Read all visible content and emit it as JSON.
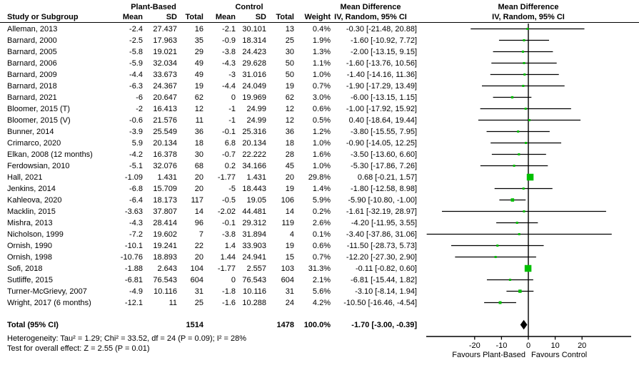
{
  "header": {
    "study_col": "Study or Subgroup",
    "group1": "Plant-Based",
    "group2": "Control",
    "mean": "Mean",
    "sd": "SD",
    "total": "Total",
    "weight": "Weight",
    "md_title": "Mean Difference",
    "md_subtitle": "IV, Random, 95% CI"
  },
  "studies": [
    {
      "name": "Alleman, 2013",
      "pb_mean": "-2.4",
      "pb_sd": "27.437",
      "pb_total": "16",
      "c_mean": "-2.1",
      "c_sd": "30.101",
      "c_total": "13",
      "weight": "0.4%",
      "md_text": "-0.30 [-21.48, 20.88]",
      "md": -0.3,
      "ci_lo": -21.48,
      "ci_hi": 20.88,
      "weight_pct": 0.4
    },
    {
      "name": "Barnard, 2000",
      "pb_mean": "-2.5",
      "pb_sd": "17.963",
      "pb_total": "35",
      "c_mean": "-0.9",
      "c_sd": "18.314",
      "c_total": "25",
      "weight": "1.9%",
      "md_text": "-1.60 [-10.92, 7.72]",
      "md": -1.6,
      "ci_lo": -10.92,
      "ci_hi": 7.72,
      "weight_pct": 1.9
    },
    {
      "name": "Barnard, 2005",
      "pb_mean": "-5.8",
      "pb_sd": "19.021",
      "pb_total": "29",
      "c_mean": "-3.8",
      "c_sd": "24.423",
      "c_total": "30",
      "weight": "1.3%",
      "md_text": "-2.00 [-13.15, 9.15]",
      "md": -2.0,
      "ci_lo": -13.15,
      "ci_hi": 9.15,
      "weight_pct": 1.3
    },
    {
      "name": "Barnard, 2006",
      "pb_mean": "-5.9",
      "pb_sd": "32.034",
      "pb_total": "49",
      "c_mean": "-4.3",
      "c_sd": "29.628",
      "c_total": "50",
      "weight": "1.1%",
      "md_text": "-1.60 [-13.76, 10.56]",
      "md": -1.6,
      "ci_lo": -13.76,
      "ci_hi": 10.56,
      "weight_pct": 1.1
    },
    {
      "name": "Barnard, 2009",
      "pb_mean": "-4.4",
      "pb_sd": "33.673",
      "pb_total": "49",
      "c_mean": "-3",
      "c_sd": "31.016",
      "c_total": "50",
      "weight": "1.0%",
      "md_text": "-1.40 [-14.16, 11.36]",
      "md": -1.4,
      "ci_lo": -14.16,
      "ci_hi": 11.36,
      "weight_pct": 1.0
    },
    {
      "name": "Barnard, 2018",
      "pb_mean": "-6.3",
      "pb_sd": "24.367",
      "pb_total": "19",
      "c_mean": "-4.4",
      "c_sd": "24.049",
      "c_total": "19",
      "weight": "0.7%",
      "md_text": "-1.90 [-17.29, 13.49]",
      "md": -1.9,
      "ci_lo": -17.29,
      "ci_hi": 13.49,
      "weight_pct": 0.7
    },
    {
      "name": "Barnard, 2021",
      "pb_mean": "-6",
      "pb_sd": "20.647",
      "pb_total": "62",
      "c_mean": "0",
      "c_sd": "19.969",
      "c_total": "62",
      "weight": "3.0%",
      "md_text": "-6.00 [-13.15, 1.15]",
      "md": -6.0,
      "ci_lo": -13.15,
      "ci_hi": 1.15,
      "weight_pct": 3.0
    },
    {
      "name": "Bloomer, 2015 (T)",
      "pb_mean": "-2",
      "pb_sd": "16.413",
      "pb_total": "12",
      "c_mean": "-1",
      "c_sd": "24.99",
      "c_total": "12",
      "weight": "0.6%",
      "md_text": "-1.00 [-17.92, 15.92]",
      "md": -1.0,
      "ci_lo": -17.92,
      "ci_hi": 15.92,
      "weight_pct": 0.6
    },
    {
      "name": "Bloomer, 2015 (V)",
      "pb_mean": "-0.6",
      "pb_sd": "21.576",
      "pb_total": "11",
      "c_mean": "-1",
      "c_sd": "24.99",
      "c_total": "12",
      "weight": "0.5%",
      "md_text": "0.40 [-18.64, 19.44]",
      "md": 0.4,
      "ci_lo": -18.64,
      "ci_hi": 19.44,
      "weight_pct": 0.5
    },
    {
      "name": "Bunner, 2014",
      "pb_mean": "-3.9",
      "pb_sd": "25.549",
      "pb_total": "36",
      "c_mean": "-0.1",
      "c_sd": "25.316",
      "c_total": "36",
      "weight": "1.2%",
      "md_text": "-3.80 [-15.55, 7.95]",
      "md": -3.8,
      "ci_lo": -15.55,
      "ci_hi": 7.95,
      "weight_pct": 1.2
    },
    {
      "name": "Crimarco, 2020",
      "pb_mean": "5.9",
      "pb_sd": "20.134",
      "pb_total": "18",
      "c_mean": "6.8",
      "c_sd": "20.134",
      "c_total": "18",
      "weight": "1.0%",
      "md_text": "-0.90 [-14.05, 12.25]",
      "md": -0.9,
      "ci_lo": -14.05,
      "ci_hi": 12.25,
      "weight_pct": 1.0
    },
    {
      "name": "Elkan, 2008 (12 months)",
      "pb_mean": "-4.2",
      "pb_sd": "16.378",
      "pb_total": "30",
      "c_mean": "-0.7",
      "c_sd": "22.222",
      "c_total": "28",
      "weight": "1.6%",
      "md_text": "-3.50 [-13.60, 6.60]",
      "md": -3.5,
      "ci_lo": -13.6,
      "ci_hi": 6.6,
      "weight_pct": 1.6
    },
    {
      "name": "Ferdowsian, 2010",
      "pb_mean": "-5.1",
      "pb_sd": "32.076",
      "pb_total": "68",
      "c_mean": "0.2",
      "c_sd": "34.166",
      "c_total": "45",
      "weight": "1.0%",
      "md_text": "-5.30 [-17.86, 7.26]",
      "md": -5.3,
      "ci_lo": -17.86,
      "ci_hi": 7.26,
      "weight_pct": 1.0
    },
    {
      "name": "Hall, 2021",
      "pb_mean": "-1.09",
      "pb_sd": "1.431",
      "pb_total": "20",
      "c_mean": "-1.77",
      "c_sd": "1.431",
      "c_total": "20",
      "weight": "29.8%",
      "md_text": "0.68 [-0.21, 1.57]",
      "md": 0.68,
      "ci_lo": -0.21,
      "ci_hi": 1.57,
      "weight_pct": 29.8
    },
    {
      "name": "Jenkins, 2014",
      "pb_mean": "-6.8",
      "pb_sd": "15.709",
      "pb_total": "20",
      "c_mean": "-5",
      "c_sd": "18.443",
      "c_total": "19",
      "weight": "1.4%",
      "md_text": "-1.80 [-12.58, 8.98]",
      "md": -1.8,
      "ci_lo": -12.58,
      "ci_hi": 8.98,
      "weight_pct": 1.4
    },
    {
      "name": "Kahleova, 2020",
      "pb_mean": "-6.4",
      "pb_sd": "18.173",
      "pb_total": "117",
      "c_mean": "-0.5",
      "c_sd": "19.05",
      "c_total": "106",
      "weight": "5.9%",
      "md_text": "-5.90 [-10.80, -1.00]",
      "md": -5.9,
      "ci_lo": -10.8,
      "ci_hi": -1.0,
      "weight_pct": 5.9
    },
    {
      "name": "Macklin, 2015",
      "pb_mean": "-3.63",
      "pb_sd": "37.807",
      "pb_total": "14",
      "c_mean": "-2.02",
      "c_sd": "44.481",
      "c_total": "14",
      "weight": "0.2%",
      "md_text": "-1.61 [-32.19, 28.97]",
      "md": -1.61,
      "ci_lo": -32.19,
      "ci_hi": 28.97,
      "weight_pct": 0.2
    },
    {
      "name": "Mishra, 2013",
      "pb_mean": "-4.3",
      "pb_sd": "28.414",
      "pb_total": "96",
      "c_mean": "-0.1",
      "c_sd": "29.312",
      "c_total": "119",
      "weight": "2.6%",
      "md_text": "-4.20 [-11.95, 3.55]",
      "md": -4.2,
      "ci_lo": -11.95,
      "ci_hi": 3.55,
      "weight_pct": 2.6
    },
    {
      "name": "Nicholson, 1999",
      "pb_mean": "-7.2",
      "pb_sd": "19.602",
      "pb_total": "7",
      "c_mean": "-3.8",
      "c_sd": "31.894",
      "c_total": "4",
      "weight": "0.1%",
      "md_text": "-3.40 [-37.86, 31.06]",
      "md": -3.4,
      "ci_lo": -37.86,
      "ci_hi": 31.06,
      "weight_pct": 0.1
    },
    {
      "name": "Ornish, 1990",
      "pb_mean": "-10.1",
      "pb_sd": "19.241",
      "pb_total": "22",
      "c_mean": "1.4",
      "c_sd": "33.903",
      "c_total": "19",
      "weight": "0.6%",
      "md_text": "-11.50 [-28.73, 5.73]",
      "md": -11.5,
      "ci_lo": -28.73,
      "ci_hi": 5.73,
      "weight_pct": 0.6
    },
    {
      "name": "Ornish, 1998",
      "pb_mean": "-10.76",
      "pb_sd": "18.893",
      "pb_total": "20",
      "c_mean": "1.44",
      "c_sd": "24.941",
      "c_total": "15",
      "weight": "0.7%",
      "md_text": "-12.20 [-27.30, 2.90]",
      "md": -12.2,
      "ci_lo": -27.3,
      "ci_hi": 2.9,
      "weight_pct": 0.7
    },
    {
      "name": "Sofi, 2018",
      "pb_mean": "-1.88",
      "pb_sd": "2.643",
      "pb_total": "104",
      "c_mean": "-1.77",
      "c_sd": "2.557",
      "c_total": "103",
      "weight": "31.3%",
      "md_text": "-0.11 [-0.82, 0.60]",
      "md": -0.11,
      "ci_lo": -0.82,
      "ci_hi": 0.6,
      "weight_pct": 31.3
    },
    {
      "name": "Sutliffe, 2015",
      "pb_mean": "-6.81",
      "pb_sd": "76.543",
      "pb_total": "604",
      "c_mean": "0",
      "c_sd": "76.543",
      "c_total": "604",
      "weight": "2.1%",
      "md_text": "-6.81 [-15.44, 1.82]",
      "md": -6.81,
      "ci_lo": -15.44,
      "ci_hi": 1.82,
      "weight_pct": 2.1
    },
    {
      "name": "Turner-McGrievy, 2007",
      "pb_mean": "-4.9",
      "pb_sd": "10.116",
      "pb_total": "31",
      "c_mean": "-1.8",
      "c_sd": "10.116",
      "c_total": "31",
      "weight": "5.6%",
      "md_text": "-3.10 [-8.14, 1.94]",
      "md": -3.1,
      "ci_lo": -8.14,
      "ci_hi": 1.94,
      "weight_pct": 5.6
    },
    {
      "name": "Wright, 2017 (6 months)",
      "pb_mean": "-12.1",
      "pb_sd": "11",
      "pb_total": "25",
      "c_mean": "-1.6",
      "c_sd": "10.288",
      "c_total": "24",
      "weight": "4.2%",
      "md_text": "-10.50 [-16.46, -4.54]",
      "md": -10.5,
      "ci_lo": -16.46,
      "ci_hi": -4.54,
      "weight_pct": 4.2
    }
  ],
  "total": {
    "label": "Total (95% CI)",
    "pb_total": "1514",
    "c_total": "1478",
    "weight": "100.0%",
    "md_text": "-1.70 [-3.00, -0.39]",
    "md": -1.7,
    "ci_lo": -3.0,
    "ci_hi": -0.39
  },
  "footer": {
    "heterogeneity": "Heterogeneity: Tau² = 1.29; Chi² = 33.52, df = 24 (P = 0.09); I² = 28%",
    "overall_effect": "Test for overall effect: Z = 2.55 (P = 0.01)"
  },
  "axis": {
    "ticks": [
      "-20",
      "-10",
      "0",
      "10",
      "20"
    ],
    "favours_left": "Favours Plant-Based",
    "favours_right": "Favours Control"
  },
  "colors": {
    "marker_green": "#00bf00",
    "diamond_black": "#000000"
  },
  "chart_data": {
    "type": "scatter",
    "subtype": "forest-plot",
    "title": "Mean Difference",
    "effect_measure": "IV, Random, 95% CI",
    "x_ticks": [
      -20,
      -10,
      0,
      10,
      20
    ],
    "xlim": [
      -38,
      38
    ],
    "xlabel_left": "Favours Plant-Based",
    "xlabel_right": "Favours Control",
    "categories": [
      "Alleman, 2013",
      "Barnard, 2000",
      "Barnard, 2005",
      "Barnard, 2006",
      "Barnard, 2009",
      "Barnard, 2018",
      "Barnard, 2021",
      "Bloomer, 2015 (T)",
      "Bloomer, 2015 (V)",
      "Bunner, 2014",
      "Crimarco, 2020",
      "Elkan, 2008 (12 months)",
      "Ferdowsian, 2010",
      "Hall, 2021",
      "Jenkins, 2014",
      "Kahleova, 2020",
      "Macklin, 2015",
      "Mishra, 2013",
      "Nicholson, 1999",
      "Ornish, 1990",
      "Ornish, 1998",
      "Sofi, 2018",
      "Sutliffe, 2015",
      "Turner-McGrievy, 2007",
      "Wright, 2017 (6 months)"
    ],
    "mean_difference": [
      -0.3,
      -1.6,
      -2.0,
      -1.6,
      -1.4,
      -1.9,
      -6.0,
      -1.0,
      0.4,
      -3.8,
      -0.9,
      -3.5,
      -5.3,
      0.68,
      -1.8,
      -5.9,
      -1.61,
      -4.2,
      -3.4,
      -11.5,
      -12.2,
      -0.11,
      -6.81,
      -3.1,
      -10.5
    ],
    "ci_lower": [
      -21.48,
      -10.92,
      -13.15,
      -13.76,
      -14.16,
      -17.29,
      -13.15,
      -17.92,
      -18.64,
      -15.55,
      -14.05,
      -13.6,
      -17.86,
      -0.21,
      -12.58,
      -10.8,
      -32.19,
      -11.95,
      -37.86,
      -28.73,
      -27.3,
      -0.82,
      -15.44,
      -8.14,
      -16.46
    ],
    "ci_upper": [
      20.88,
      7.72,
      9.15,
      10.56,
      11.36,
      13.49,
      1.15,
      15.92,
      19.44,
      7.95,
      12.25,
      6.6,
      7.26,
      1.57,
      8.98,
      -1.0,
      28.97,
      3.55,
      31.06,
      5.73,
      2.9,
      0.6,
      1.82,
      1.94,
      -4.54
    ],
    "weights_pct": [
      0.4,
      1.9,
      1.3,
      1.1,
      1.0,
      0.7,
      3.0,
      0.6,
      0.5,
      1.2,
      1.0,
      1.6,
      1.0,
      29.8,
      1.4,
      5.9,
      0.2,
      2.6,
      0.1,
      0.6,
      0.7,
      31.3,
      2.1,
      5.6,
      4.2
    ],
    "overall": {
      "label": "Total (95% CI)",
      "mean_difference": -1.7,
      "ci_lower": -3.0,
      "ci_upper": -0.39,
      "weight_pct": 100.0,
      "pb_n": 1514,
      "control_n": 1478
    }
  }
}
